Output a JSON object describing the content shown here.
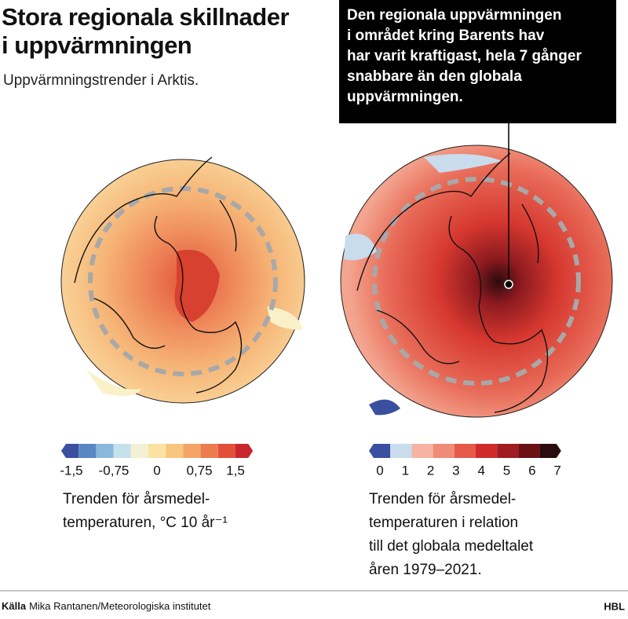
{
  "header": {
    "title": [
      "Stora regionala skillnader",
      "i uppvärmningen"
    ],
    "subtitle": "Uppvärmningstrender i Arktis."
  },
  "callout": [
    "Den regionala uppvärmningen",
    "i området kring Barents hav",
    "har varit kraftigast, hela 7 gånger",
    "snabbare än den globala",
    "uppvärmningen."
  ],
  "left_legend": {
    "labels": [
      "-1,5",
      "-0,75",
      "0",
      "0,75",
      "1,5"
    ],
    "caption": [
      "Trenden för årsmedel-",
      "temperaturen, °C 10 år⁻¹"
    ]
  },
  "right_legend": {
    "labels": [
      "0",
      "1",
      "2",
      "3",
      "4",
      "5",
      "6",
      "7"
    ],
    "caption": [
      "Trenden för årsmedel-",
      "temperaturen i relation",
      "till det globala medeltalet",
      "åren 1979–2021."
    ]
  },
  "footer": {
    "source_label": "Källa",
    "source": "Mika Rantanen/Meteorologiska institutet",
    "brand": "HBL"
  }
}
